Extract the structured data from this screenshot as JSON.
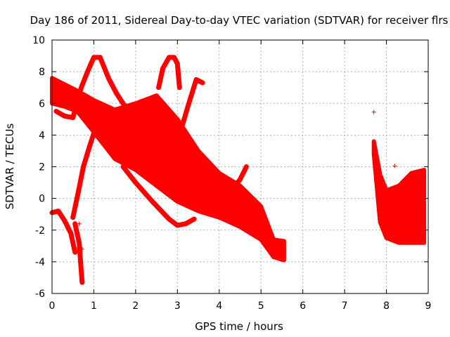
{
  "chart_data": {
    "type": "scatter",
    "title": "Day 186 of 2011, Sidereal Day-to-day VTEC variation (SDTVAR) for receiver flrs",
    "xlabel": "GPS time / hours",
    "ylabel": "SDTVAR / TECUs",
    "xlim": [
      0,
      9
    ],
    "ylim": [
      -6,
      10
    ],
    "xticks": [
      "0",
      "1",
      "2",
      "3",
      "4",
      "5",
      "6",
      "7",
      "8",
      "9"
    ],
    "yticks": [
      "-6",
      "-4",
      "-2",
      "0",
      "2",
      "4",
      "6",
      "8",
      "10"
    ],
    "grid": true,
    "marker": "+",
    "color": "#ff0000",
    "bands": [
      {
        "name": "main-band",
        "x": [
          0.0,
          0.3,
          0.6,
          1.0,
          1.5,
          2.0,
          2.5,
          3.0,
          3.5,
          4.0,
          4.5,
          5.0,
          5.3,
          5.55
        ],
        "y_low": [
          6.0,
          5.8,
          5.5,
          4.2,
          2.5,
          1.8,
          0.8,
          -0.2,
          -0.8,
          -1.2,
          -1.8,
          -2.6,
          -3.7,
          -3.9
        ],
        "y_high": [
          7.6,
          7.2,
          6.8,
          6.2,
          5.6,
          6.0,
          6.5,
          5.0,
          3.0,
          1.6,
          0.8,
          -0.5,
          -2.6,
          -2.7
        ]
      },
      {
        "name": "late-band",
        "x": [
          7.7,
          7.85,
          8.0,
          8.3,
          8.6,
          8.9
        ],
        "y_low": [
          2.8,
          -1.5,
          -2.5,
          -2.8,
          -2.8,
          -2.8
        ],
        "y_high": [
          3.6,
          1.5,
          0.5,
          0.8,
          1.6,
          1.8
        ]
      }
    ],
    "tracks": [
      {
        "name": "arc-to-9-at-1h",
        "x": [
          0.1,
          0.3,
          0.5,
          0.7,
          0.85,
          1.0,
          1.15,
          1.35,
          1.55,
          1.75
        ],
        "y": [
          5.5,
          5.2,
          5.1,
          7.0,
          8.0,
          8.9,
          8.9,
          7.6,
          6.6,
          5.8
        ]
      },
      {
        "name": "rise-from-low",
        "x": [
          0.5,
          0.62,
          0.75,
          0.9,
          1.0,
          1.1
        ],
        "y": [
          -1.2,
          0.3,
          2.0,
          3.3,
          4.1,
          4.3
        ]
      },
      {
        "name": "low-left-dip",
        "x": [
          0.0,
          0.15,
          0.3,
          0.45,
          0.55
        ],
        "y": [
          -0.9,
          -0.8,
          -1.4,
          -2.2,
          -3.4
        ]
      },
      {
        "name": "isolated-drop",
        "x": [
          0.55,
          0.65,
          0.7,
          0.72
        ],
        "y": [
          -1.6,
          -2.8,
          -4.6,
          -5.3
        ]
      },
      {
        "name": "arc-to-9-at-3h",
        "x": [
          2.55,
          2.65,
          2.8,
          2.92,
          3.0,
          3.05
        ],
        "y": [
          7.0,
          8.2,
          8.9,
          8.9,
          8.5,
          7.0
        ]
      },
      {
        "name": "descending-loop",
        "x": [
          1.7,
          2.0,
          2.4,
          2.8,
          3.0,
          3.2,
          3.4
        ],
        "y": [
          2.0,
          1.0,
          -0.2,
          -1.3,
          -1.7,
          -1.6,
          -1.3
        ]
      },
      {
        "name": "rising-to-7.5",
        "x": [
          3.05,
          3.25,
          3.45,
          3.6
        ],
        "y": [
          4.0,
          5.8,
          7.5,
          7.3
        ]
      },
      {
        "name": "right-rise",
        "x": [
          4.1,
          4.3,
          4.5,
          4.65
        ],
        "y": [
          -0.3,
          0.5,
          1.2,
          2.0
        ]
      }
    ],
    "points": [
      {
        "x": 7.7,
        "y": 5.45
      },
      {
        "x": 8.2,
        "y": 2.05
      },
      {
        "x": 0.65,
        "y": -1.6
      },
      {
        "x": 0.72,
        "y": -3.2
      }
    ]
  }
}
